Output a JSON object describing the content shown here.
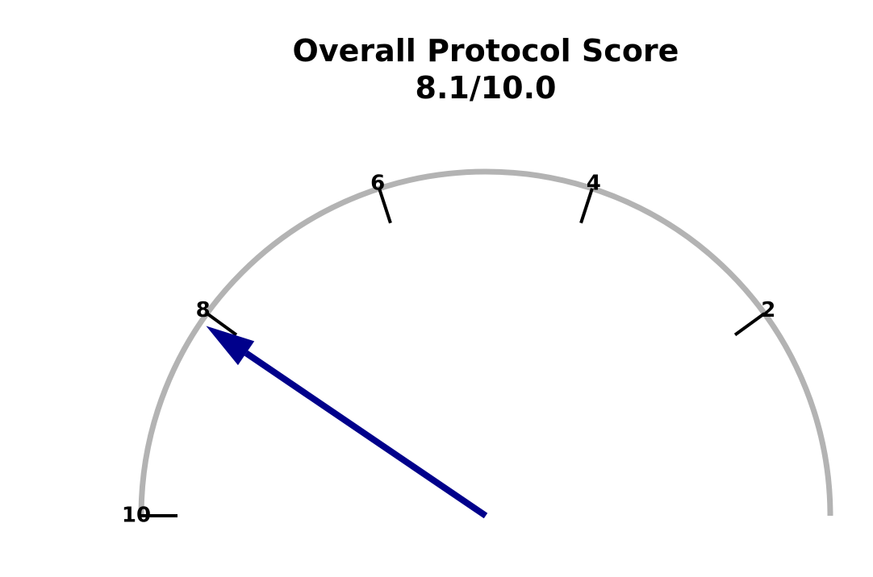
{
  "chart_data": {
    "type": "gauge",
    "title": "Overall Protocol Score",
    "subtitle": "8.1/10.0",
    "value": 8.1,
    "range": [
      0,
      10
    ],
    "direction": "reversed",
    "ticks": [
      {
        "value": 10,
        "label": "10"
      },
      {
        "value": 8,
        "label": "8"
      },
      {
        "value": 6,
        "label": "6"
      },
      {
        "value": 4,
        "label": "4"
      },
      {
        "value": 2,
        "label": "2"
      }
    ],
    "arc_color": "#b3b3b3",
    "needle_color": "#00008b"
  }
}
